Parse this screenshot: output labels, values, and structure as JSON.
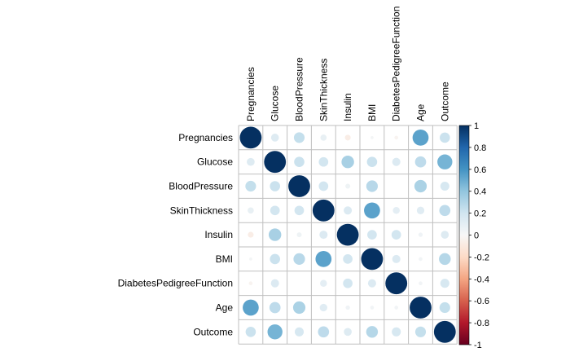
{
  "chart_data": {
    "type": "heatmap",
    "title": "",
    "variables": [
      "Pregnancies",
      "Glucose",
      "BloodPressure",
      "SkinThickness",
      "Insulin",
      "BMI",
      "DiabetesPedigreeFunction",
      "Age",
      "Outcome"
    ],
    "matrix": [
      [
        1.0,
        0.13,
        0.24,
        0.08,
        -0.07,
        0.02,
        -0.03,
        0.54,
        0.22
      ],
      [
        0.13,
        1.0,
        0.22,
        0.19,
        0.33,
        0.22,
        0.14,
        0.26,
        0.47
      ],
      [
        0.24,
        0.22,
        1.0,
        0.19,
        0.05,
        0.28,
        0.0,
        0.32,
        0.17
      ],
      [
        0.08,
        0.19,
        0.19,
        1.0,
        0.14,
        0.54,
        0.1,
        0.12,
        0.26
      ],
      [
        -0.07,
        0.33,
        0.05,
        0.14,
        1.0,
        0.19,
        0.19,
        0.04,
        0.13
      ],
      [
        0.02,
        0.22,
        0.28,
        0.54,
        0.19,
        1.0,
        0.14,
        0.03,
        0.29
      ],
      [
        -0.03,
        0.14,
        0.0,
        0.1,
        0.19,
        0.14,
        1.0,
        0.03,
        0.17
      ],
      [
        0.54,
        0.26,
        0.32,
        0.12,
        0.04,
        0.03,
        0.03,
        1.0,
        0.24
      ],
      [
        0.22,
        0.47,
        0.17,
        0.26,
        0.13,
        0.29,
        0.17,
        0.24,
        1.0
      ]
    ],
    "color_scale": {
      "range": [
        -1,
        1
      ],
      "ticks": [
        "1",
        "0.8",
        "0.6",
        "0.4",
        "0.2",
        "0",
        "-0.2",
        "-0.4",
        "-0.6",
        "-0.8",
        "-1"
      ],
      "negative_color": "#67001F",
      "mid_color": "#F7F7F7",
      "positive_color": "#053061"
    },
    "glyph": "circle",
    "grid": true,
    "legend_position": "right"
  }
}
